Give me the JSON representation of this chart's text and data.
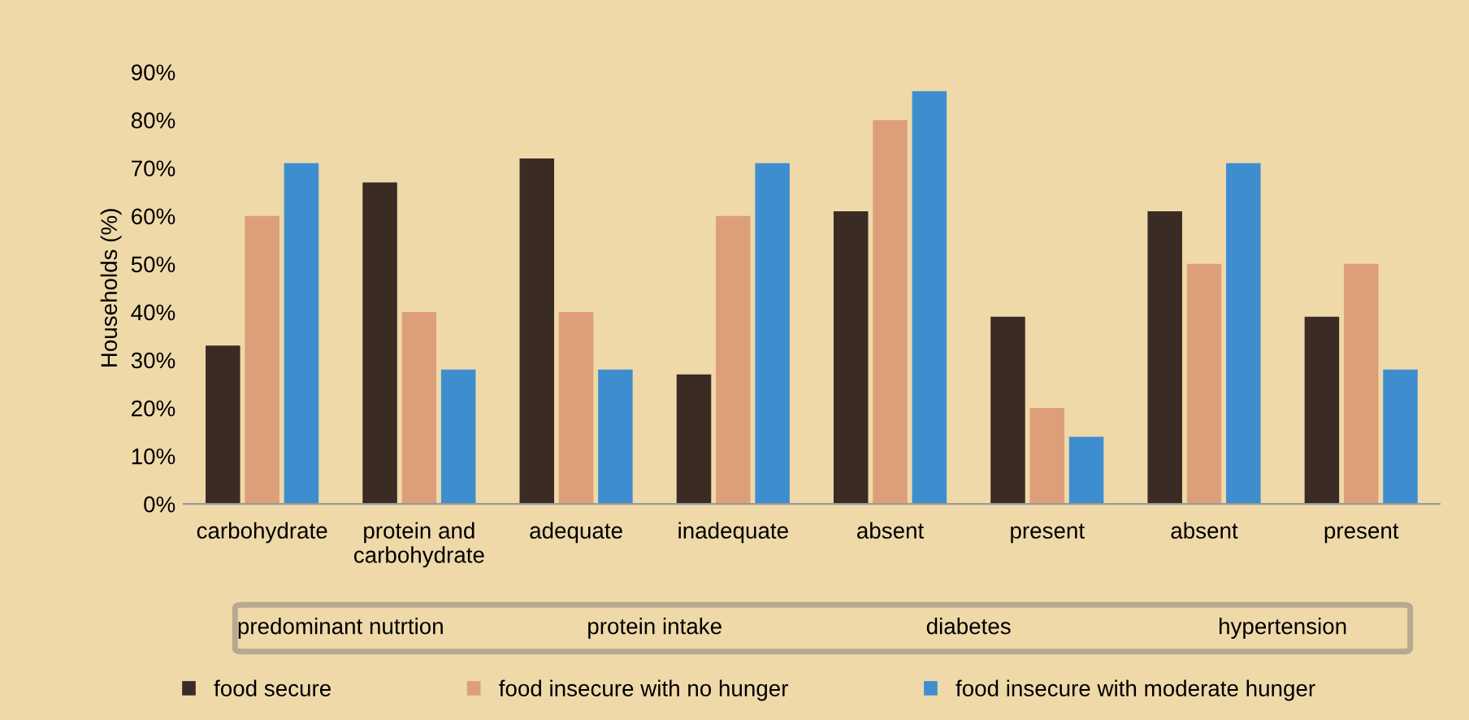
{
  "chart_data": {
    "type": "bar",
    "ylabel": "Households (%)",
    "categories": [
      "carbohydrate",
      "protein and\ncarbohydrate",
      "adequate",
      "inadequate",
      "absent",
      "present",
      "absent",
      "present"
    ],
    "series": [
      {
        "name": "food secure",
        "color": "#3b2b25",
        "values": [
          33,
          67,
          72,
          27,
          61,
          39,
          61,
          39
        ]
      },
      {
        "name": "food insecure with no hunger",
        "color": "#dd9f7a",
        "values": [
          60,
          40,
          40,
          60,
          80,
          20,
          50,
          50
        ]
      },
      {
        "name": "food insecure with moderate hunger",
        "color": "#3e8ecf",
        "values": [
          71,
          28,
          28,
          71,
          86,
          14,
          71,
          28
        ]
      }
    ],
    "annotations": [
      "predominant nutrtion",
      "protein intake",
      "diabetes",
      "hypertension"
    ],
    "ylim": [
      0,
      90
    ],
    "yticks": [
      {
        "value": 0,
        "label": "0%"
      },
      {
        "value": 10,
        "label": "10%"
      },
      {
        "value": 20,
        "label": "20%"
      },
      {
        "value": 30,
        "label": "30%"
      },
      {
        "value": 40,
        "label": "40%"
      },
      {
        "value": 50,
        "label": "50%"
      },
      {
        "value": 60,
        "label": "60%"
      },
      {
        "value": 70,
        "label": "70%"
      },
      {
        "value": 80,
        "label": "80%"
      },
      {
        "value": 90,
        "label": "90%"
      }
    ],
    "legend": "bottom",
    "grid": false
  }
}
